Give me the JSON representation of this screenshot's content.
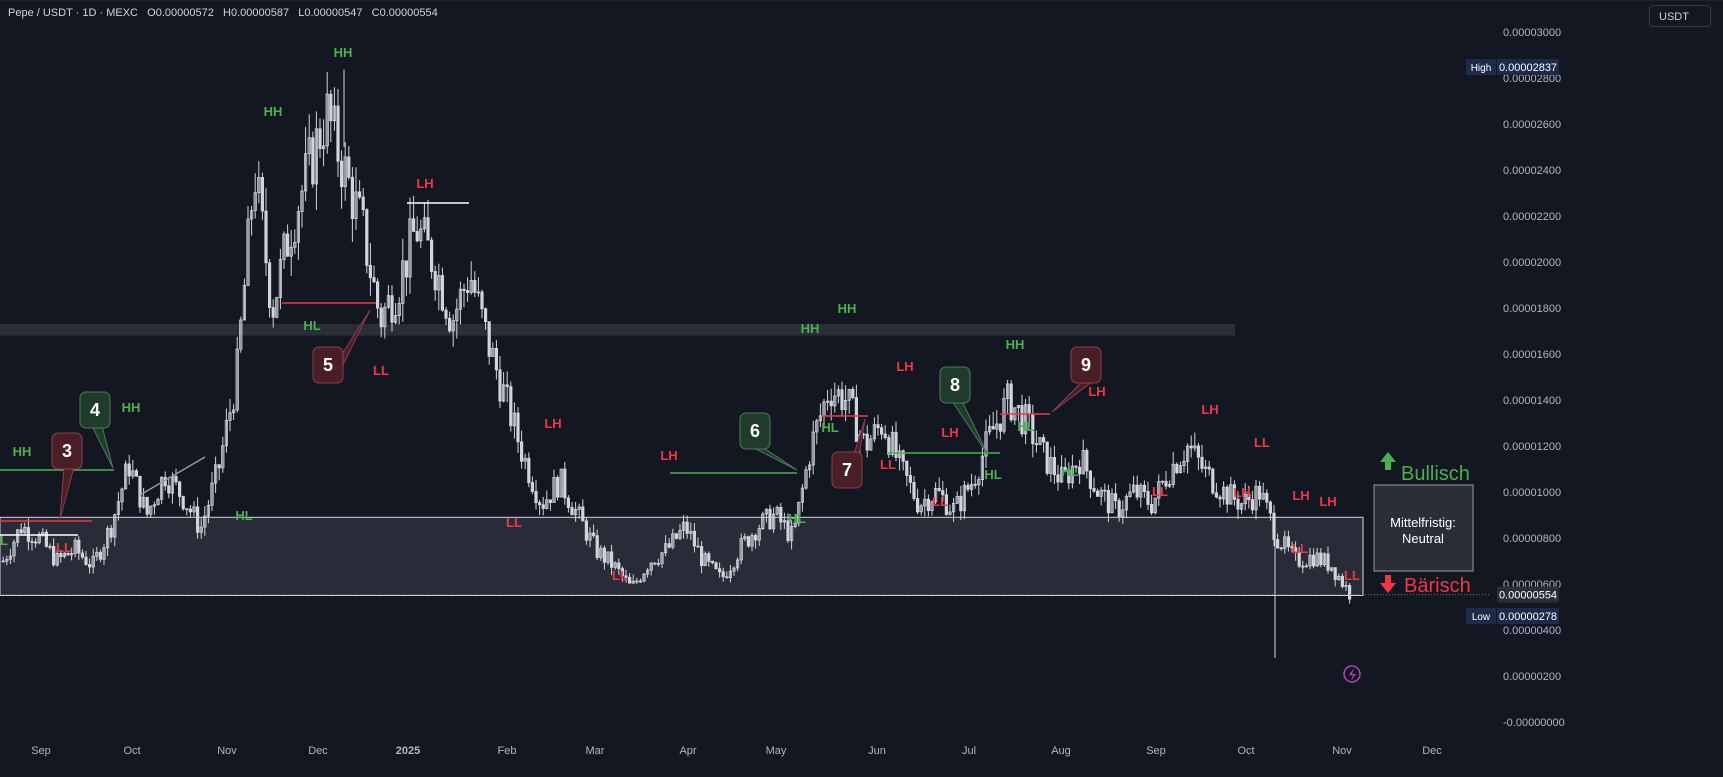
{
  "header": {
    "symbol_line": "Pepe / USDT · 1D · MEXC",
    "open": "O0.00000572",
    "high": "H0.00000587",
    "low": "L0.00000547",
    "close": "C0.00000554"
  },
  "currency_button": "USDT",
  "price_badges": {
    "high_label": "High",
    "high_value": "0.00002837",
    "low_label": "Low",
    "low_value": "0.00000278",
    "last_value": "0.00000554"
  },
  "colors": {
    "background": "#131722",
    "candle": "#d1d4dc",
    "bull": "#4caf50",
    "bear": "#f23645",
    "zone": "#2a2e39",
    "badge_green": "#1f3b2a",
    "badge_red": "#4a1e25"
  },
  "chart_data": {
    "type": "candlestick",
    "title": "Pepe / USDT · 1D · MEXC",
    "x_ticks": [
      "Sep",
      "Oct",
      "Nov",
      "Dec",
      "2025",
      "Feb",
      "Mar",
      "Apr",
      "May",
      "Jun",
      "Jul",
      "Aug",
      "Sep",
      "Oct",
      "Nov",
      "Dec"
    ],
    "y_ticks": [
      "0.00003000",
      "0.00002800",
      "0.00002600",
      "0.00002400",
      "0.00002200",
      "0.00002000",
      "0.00001800",
      "0.00001600",
      "0.00001400",
      "0.00001200",
      "0.00001000",
      "0.00000800",
      "0.00000600",
      "0.00000400",
      "0.00000200",
      "-0.00000000"
    ],
    "ylim": [
      -1e-07,
      3.01e-05
    ],
    "grid": false,
    "series": [
      {
        "values": [
          [
            7e-06,
            8.5e-06
          ],
          [
            8.5e-06,
            8e-06
          ],
          [
            8e-06,
            7e-06
          ],
          [
            7e-06,
            7.5e-06
          ],
          [
            7.5e-06,
            6.8e-06
          ],
          [
            6.8e-06,
            8.5e-06
          ],
          [
            8.5e-06,
            1.12e-05
          ],
          [
            1.12e-05,
            9e-06
          ],
          [
            9e-06,
            1.08e-05
          ],
          [
            1.08e-05,
            9.8e-06
          ],
          [
            9.8e-06,
            8.4e-06
          ],
          [
            8.4e-06,
            1.1e-05
          ],
          [
            1.1e-05,
            1.5e-05
          ],
          [
            1.5e-05,
            2.4e-05
          ],
          [
            2.4e-05,
            1.8e-05
          ],
          [
            1.8e-05,
            2.15e-05
          ],
          [
            2.15e-05,
            2.4e-05
          ],
          [
            2.4e-05,
            2.65e-05
          ],
          [
            2.65e-05,
            2.4e-05
          ],
          [
            2.4e-05,
            2.15e-05
          ],
          [
            2.15e-05,
            1.75e-05
          ],
          [
            1.75e-05,
            1.9e-05
          ],
          [
            1.9e-05,
            2.15e-05
          ],
          [
            2.15e-05,
            2e-05
          ],
          [
            2e-05,
            1.75e-05
          ],
          [
            1.75e-05,
            1.95e-05
          ],
          [
            1.95e-05,
            1.65e-05
          ],
          [
            1.65e-05,
            1.4e-05
          ],
          [
            1.4e-05,
            1.15e-05
          ],
          [
            1.15e-05,
            9.5e-06
          ],
          [
            9.5e-06,
            1.05e-05
          ],
          [
            1.05e-05,
            9e-06
          ],
          [
            9e-06,
            7.5e-06
          ],
          [
            7.5e-06,
            6.8e-06
          ],
          [
            6.8e-06,
            5.8e-06
          ],
          [
            5.8e-06,
            7e-06
          ],
          [
            7e-06,
            7.5e-06
          ],
          [
            7.5e-06,
            8.5e-06
          ],
          [
            8.5e-06,
            7e-06
          ],
          [
            7e-06,
            6.2e-06
          ],
          [
            6.2e-06,
            7.5e-06
          ],
          [
            7.5e-06,
            8.5e-06
          ],
          [
            8.5e-06,
            9e-06
          ],
          [
            9e-06,
            8e-06
          ],
          [
            8e-06,
            1.2e-05
          ],
          [
            1.2e-05,
            1.45e-05
          ],
          [
            1.45e-05,
            1.4e-05
          ],
          [
            1.4e-05,
            1.2e-05
          ],
          [
            1.2e-05,
            1.3e-05
          ],
          [
            1.3e-05,
            1.1e-05
          ],
          [
            1.1e-05,
            9.5e-06
          ],
          [
            9.5e-06,
            1e-05
          ],
          [
            1e-05,
            9.2e-06
          ],
          [
            9.2e-06,
            1.05e-05
          ],
          [
            1.05e-05,
            1.25e-05
          ],
          [
            1.25e-05,
            1.4e-05
          ],
          [
            1.4e-05,
            1.3e-05
          ],
          [
            1.3e-05,
            1.15e-05
          ],
          [
            1.15e-05,
            1.05e-05
          ],
          [
            1.05e-05,
            1.15e-05
          ],
          [
            1.15e-05,
            1e-05
          ],
          [
            1e-05,
            9.2e-06
          ],
          [
            9.2e-06,
            1e-05
          ],
          [
            1e-05,
            9.5e-06
          ],
          [
            9.5e-06,
            1.1e-05
          ],
          [
            1.1e-05,
            1.2e-05
          ],
          [
            1.2e-05,
            1.08e-05
          ],
          [
            1.08e-05,
            1e-05
          ],
          [
            1e-05,
            9.5e-06
          ],
          [
            9.5e-06,
            1e-05
          ],
          [
            1e-05,
            8e-06
          ],
          [
            8e-06,
            7e-06
          ],
          [
            7e-06,
            7.2e-06
          ],
          [
            7.2e-06,
            6.8e-06
          ],
          [
            6.8e-06,
            5.6e-06
          ]
        ]
      }
    ],
    "high": 2.837e-05,
    "low": 2.78e-06,
    "last": 5.54e-06,
    "pivot_labels": [
      {
        "text": "HH",
        "kind": "bull"
      },
      {
        "text": "L",
        "kind": "bull"
      },
      {
        "text": "LL",
        "kind": "bear"
      },
      {
        "text": "HH",
        "kind": "bull"
      },
      {
        "text": "HL",
        "kind": "bull"
      },
      {
        "text": "HH",
        "kind": "bull"
      },
      {
        "text": "HH",
        "kind": "bull"
      },
      {
        "text": "HL",
        "kind": "bull"
      },
      {
        "text": "LL",
        "kind": "bear"
      },
      {
        "text": "LH",
        "kind": "bear"
      },
      {
        "text": "LL",
        "kind": "bear"
      },
      {
        "text": "LH",
        "kind": "bear"
      },
      {
        "text": "LL",
        "kind": "bear"
      },
      {
        "text": "LH",
        "kind": "bear"
      },
      {
        "text": "HL",
        "kind": "bull"
      },
      {
        "text": "HH",
        "kind": "bull"
      },
      {
        "text": "HH",
        "kind": "bull"
      },
      {
        "text": "HL",
        "kind": "bull"
      },
      {
        "text": "LH",
        "kind": "bear"
      },
      {
        "text": "LL",
        "kind": "bear"
      },
      {
        "text": "LH",
        "kind": "bear"
      },
      {
        "text": "LL",
        "kind": "bear"
      },
      {
        "text": "HL",
        "kind": "bull"
      },
      {
        "text": "HH",
        "kind": "bull"
      },
      {
        "text": "HL",
        "kind": "bull"
      },
      {
        "text": "HL",
        "kind": "bull"
      },
      {
        "text": "LH",
        "kind": "bear"
      },
      {
        "text": "LL",
        "kind": "bear"
      },
      {
        "text": "LH",
        "kind": "bear"
      },
      {
        "text": "LH",
        "kind": "bear"
      },
      {
        "text": "LL",
        "kind": "bear"
      },
      {
        "text": "LH",
        "kind": "bear"
      },
      {
        "text": "LL",
        "kind": "bear"
      },
      {
        "text": "LH",
        "kind": "bear"
      },
      {
        "text": "LL",
        "kind": "bear"
      }
    ],
    "annotations": [
      {
        "text": "3",
        "kind": "bear"
      },
      {
        "text": "4",
        "kind": "bull"
      },
      {
        "text": "5",
        "kind": "bear"
      },
      {
        "text": "6",
        "kind": "bull"
      },
      {
        "text": "7",
        "kind": "bear"
      },
      {
        "text": "8",
        "kind": "bull"
      },
      {
        "text": "9",
        "kind": "bear"
      }
    ],
    "zone": {
      "from": 5.5e-06,
      "to": 8.9e-06
    },
    "resistance_band": {
      "from": 1.68e-05,
      "to": 1.73e-05
    },
    "bullish_label": "Bullisch",
    "bearish_label": "Bärisch",
    "zone_label_line1": "Mittelfristig:",
    "zone_label_line2": "Neutral"
  }
}
